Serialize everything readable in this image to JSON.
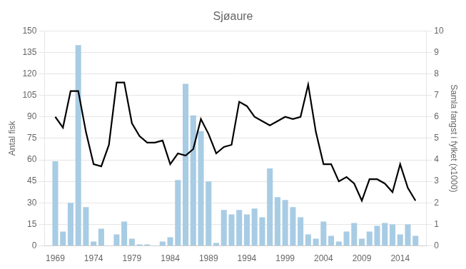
{
  "chart_data": {
    "type": "bar",
    "title": "Sjøaure",
    "ylabel": "Antal fisk",
    "y2label": "Samla fangst i fylket (x1000)",
    "x": [
      1969,
      1970,
      1971,
      1972,
      1973,
      1974,
      1975,
      1976,
      1977,
      1978,
      1979,
      1980,
      1981,
      1982,
      1983,
      1984,
      1985,
      1986,
      1987,
      1988,
      1989,
      1990,
      1991,
      1992,
      1993,
      1994,
      1995,
      1996,
      1997,
      1998,
      1999,
      2000,
      2001,
      2002,
      2003,
      2004,
      2005,
      2006,
      2007,
      2008,
      2009,
      2010,
      2011,
      2012,
      2013,
      2014,
      2015,
      2016
    ],
    "series": [
      {
        "type": "bar",
        "color": "#a8cce4",
        "values": [
          59,
          10,
          30,
          140,
          27,
          3,
          12,
          0,
          8,
          17,
          5,
          1,
          1,
          0,
          3,
          6,
          46,
          113,
          91,
          80,
          45,
          2,
          25,
          22,
          25,
          22,
          26,
          20,
          54,
          34,
          32,
          27,
          20,
          8,
          5,
          17,
          7,
          3,
          10,
          16,
          5,
          10,
          14,
          16,
          15,
          8,
          15,
          7
        ]
      },
      {
        "type": "line",
        "color": "#000000",
        "axis": "y2",
        "values": [
          6.0,
          5.5,
          7.2,
          7.2,
          5.3,
          3.8,
          3.7,
          4.7,
          7.6,
          7.6,
          5.7,
          5.1,
          4.8,
          4.8,
          4.9,
          3.8,
          4.3,
          4.2,
          4.5,
          5.9,
          5.2,
          4.3,
          4.6,
          4.7,
          6.7,
          6.5,
          6.0,
          5.8,
          5.6,
          5.8,
          6.0,
          5.9,
          6.0,
          7.5,
          5.3,
          3.8,
          3.8,
          3.0,
          3.2,
          2.9,
          2.1,
          3.1,
          3.1,
          2.9,
          2.5,
          3.8,
          2.7,
          2.1
        ]
      }
    ],
    "xlim": [
      1967.6,
      2017.4
    ],
    "xticks": [
      1969,
      1974,
      1979,
      1984,
      1989,
      1994,
      1999,
      2004,
      2009,
      2014
    ],
    "ylim": [
      0,
      150
    ],
    "yticks": [
      0,
      15,
      30,
      45,
      60,
      75,
      90,
      105,
      120,
      135,
      150
    ],
    "y2lim": [
      0,
      10
    ],
    "y2ticks": [
      0,
      1,
      2,
      3,
      4,
      5,
      6,
      7,
      8,
      9,
      10
    ],
    "grid": true
  }
}
